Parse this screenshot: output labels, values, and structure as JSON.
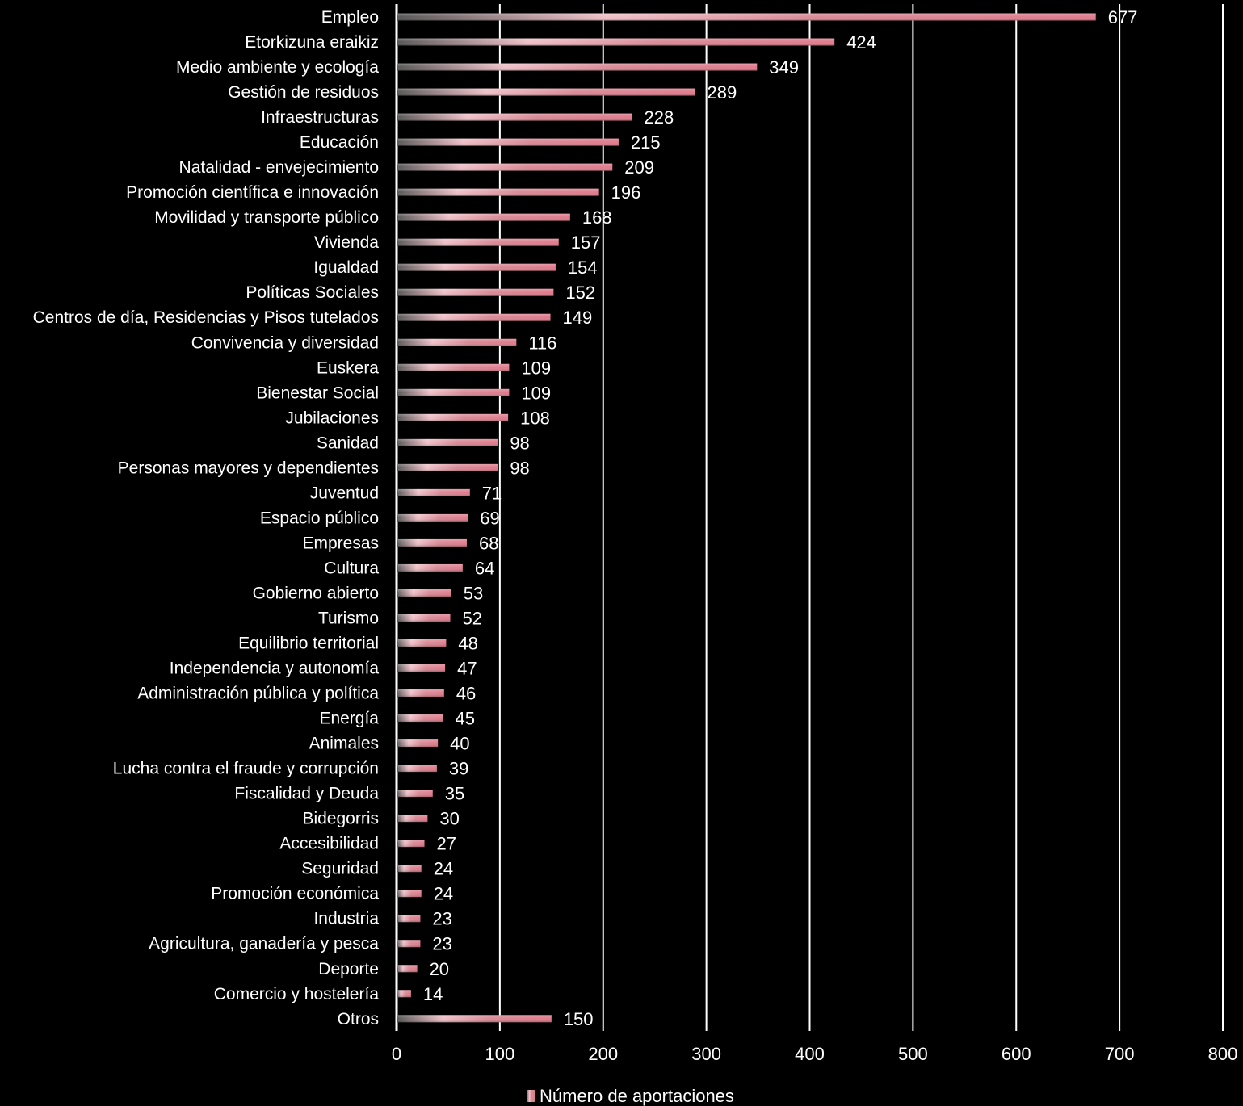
{
  "chart_data": {
    "type": "bar",
    "orientation": "horizontal",
    "title": "",
    "xlabel": "",
    "ylabel": "",
    "xlim": [
      0,
      800
    ],
    "x_ticks": [
      0,
      100,
      200,
      300,
      400,
      500,
      600,
      700,
      800
    ],
    "grid": true,
    "legend_position": "bottom",
    "bar_color": "#e08a96",
    "background": "#000000",
    "categories": [
      "Empleo",
      "Etorkizuna eraikiz",
      "Medio ambiente y ecología",
      "Gestión de residuos",
      "Infraestructuras",
      "Educación",
      "Natalidad - envejecimiento",
      "Promoción científica e innovación",
      "Movilidad y transporte público",
      "Vivienda",
      "Igualdad",
      "Políticas Sociales",
      "Centros de día, Residencias y Pisos tutelados",
      "Convivencia y diversidad",
      "Euskera",
      "Bienestar Social",
      "Jubilaciones",
      "Sanidad",
      "Personas mayores y dependientes",
      "Juventud",
      "Espacio público",
      "Empresas",
      "Cultura",
      "Gobierno abierto",
      "Turismo",
      "Equilibrio territorial",
      "Independencia y autonomía",
      "Administración pública y política",
      "Energía",
      "Animales",
      "Lucha contra el fraude y corrupción",
      "Fiscalidad y Deuda",
      "Bidegorris",
      "Accesibilidad",
      "Seguridad",
      "Promoción económica",
      "Industria",
      "Agricultura, ganadería y pesca",
      "Deporte",
      "Comercio y hostelería",
      "Otros"
    ],
    "series": [
      {
        "name": "Número de aportaciones",
        "values": [
          677,
          424,
          349,
          289,
          228,
          215,
          209,
          196,
          168,
          157,
          154,
          152,
          149,
          116,
          109,
          109,
          108,
          98,
          98,
          71,
          69,
          68,
          64,
          53,
          52,
          48,
          47,
          46,
          45,
          40,
          39,
          35,
          30,
          27,
          24,
          24,
          23,
          23,
          20,
          14,
          150
        ]
      }
    ]
  }
}
